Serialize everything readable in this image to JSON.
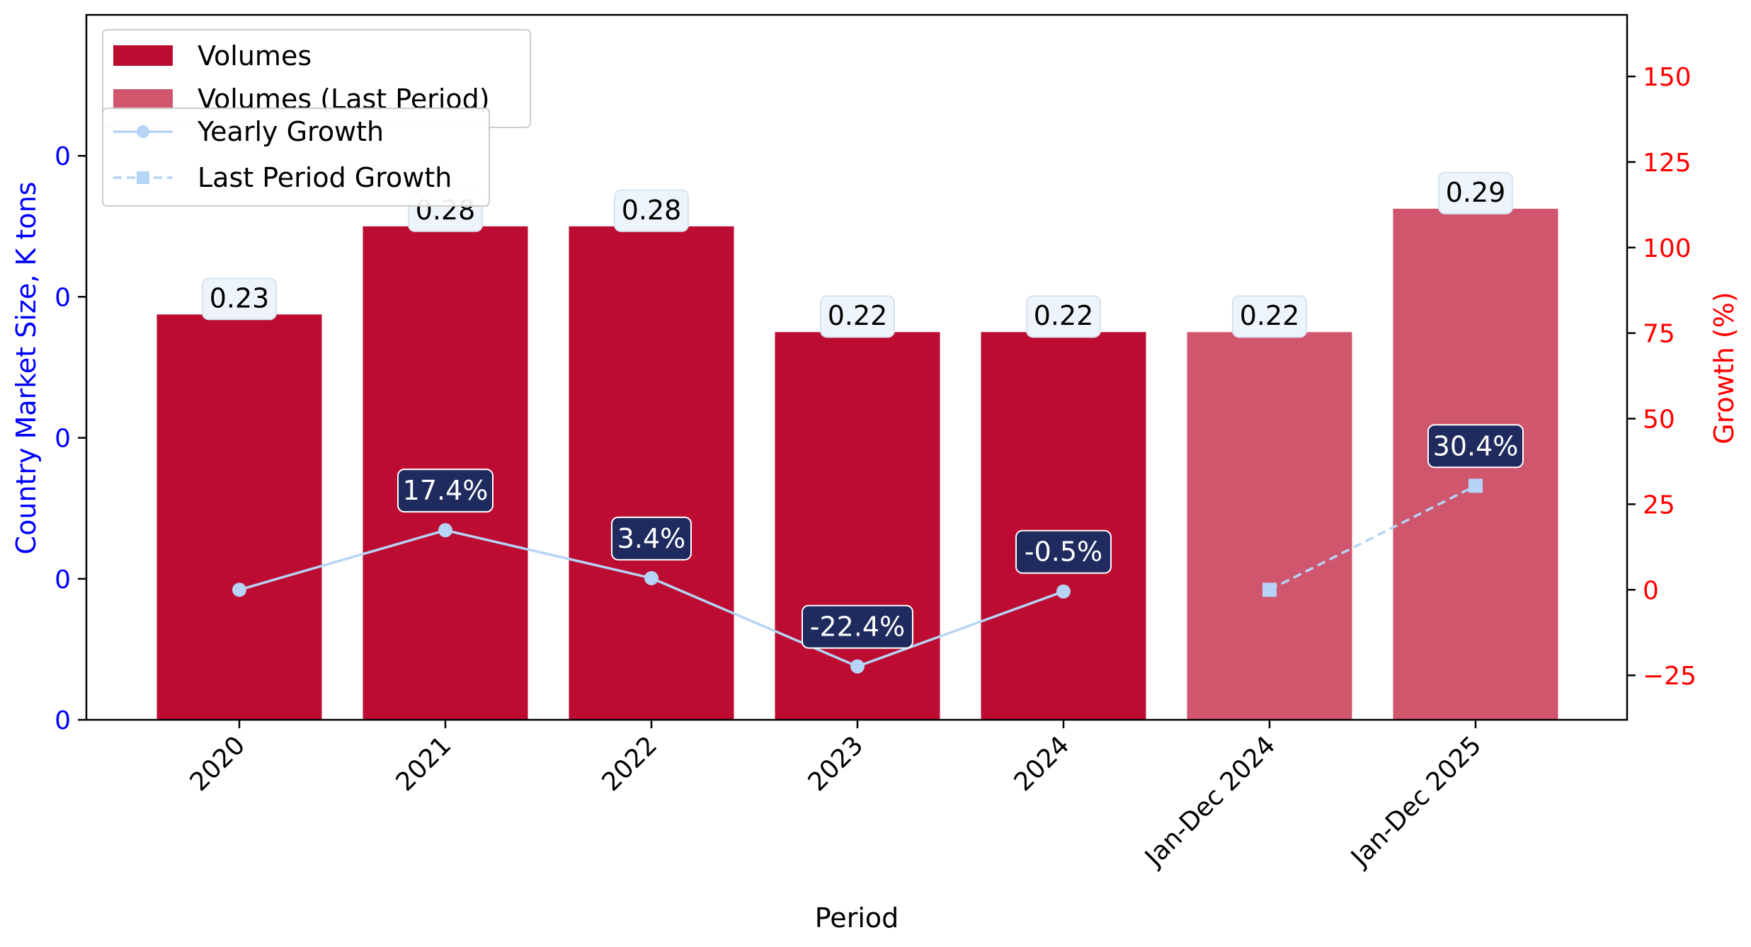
{
  "chart_data": {
    "type": "bar",
    "categories": [
      "2020",
      "2021",
      "2022",
      "2023",
      "2024",
      "Jan-Dec 2024",
      "Jan-Dec 2025"
    ],
    "xlabel": "Period",
    "ylabel": "Country Market Size, K tons",
    "y2label": "Growth (%)",
    "ylim": [
      0,
      0.4
    ],
    "y2lim": [
      -38,
      168
    ],
    "left_tick_labels": [
      "0",
      "0",
      "0",
      "0",
      "0"
    ],
    "left_tick_values": [
      0,
      0.08,
      0.16,
      0.24,
      0.32
    ],
    "right_ticks": [
      -25,
      0,
      25,
      50,
      75,
      100,
      125,
      150
    ],
    "right_tick_labels": [
      "−25",
      "0",
      "25",
      "50",
      "75",
      "100",
      "125",
      "150"
    ],
    "series": [
      {
        "name": "Volumes",
        "kind": "bar",
        "color": "#bc0c32",
        "values": [
          0.23,
          0.28,
          0.28,
          0.22,
          0.22,
          null,
          null
        ],
        "labels": [
          "0.23",
          "0.28",
          "0.28",
          "0.22",
          "0.22",
          null,
          null
        ]
      },
      {
        "name": "Volumes (Last Period)",
        "kind": "bar",
        "color": "#d0566e",
        "values": [
          null,
          null,
          null,
          null,
          null,
          0.22,
          0.29
        ],
        "labels": [
          null,
          null,
          null,
          null,
          null,
          "0.22",
          "0.29"
        ]
      },
      {
        "name": "Yearly Growth",
        "kind": "line",
        "axis": "right",
        "color": "#b6d4f5",
        "marker": "circle",
        "linestyle": "solid",
        "values": [
          0,
          17.4,
          3.4,
          -22.4,
          -0.5,
          null,
          null
        ],
        "labels": [
          null,
          "17.4%",
          "3.4%",
          "-22.4%",
          "-0.5%",
          null,
          null
        ]
      },
      {
        "name": "Last Period Growth",
        "kind": "line",
        "axis": "right",
        "color": "#b6d4f5",
        "marker": "square",
        "linestyle": "dashed",
        "values": [
          null,
          null,
          null,
          null,
          null,
          0,
          30.4
        ],
        "labels": [
          null,
          null,
          null,
          null,
          null,
          null,
          "30.4%"
        ]
      }
    ],
    "colors": {
      "left_axis": "#0000ff",
      "right_axis": "#ff0000",
      "growth_label_bg": "#1f2b5e",
      "bar_label_bg": "#eef4fb"
    },
    "legend": {
      "bars_placement": "top-left",
      "lines_placement": "top-left, below bar legend"
    },
    "grid": false
  }
}
